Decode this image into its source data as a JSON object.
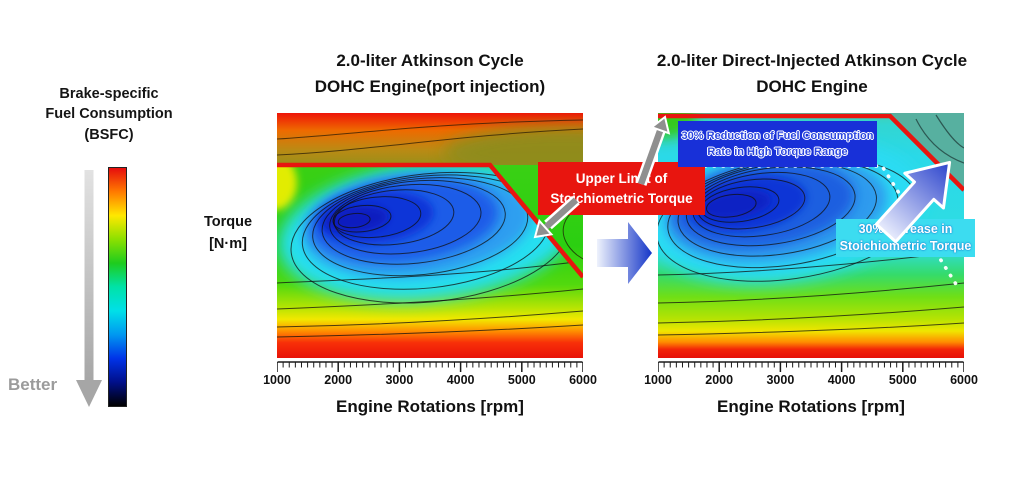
{
  "legend": {
    "title_lines": [
      "Brake-specific",
      "Fuel Consumption",
      "(BSFC)"
    ],
    "better_label": "Better",
    "colorbar_stops": [
      "#e60d0d",
      "#ff7a00",
      "#ffe800",
      "#8ce000",
      "#1ecc1e",
      "#00e2a8",
      "#00e0e8",
      "#0098f0",
      "#0033e8",
      "#000f8a",
      "#000000"
    ]
  },
  "torque_axis": {
    "lines": [
      "Torque",
      "[N·m]"
    ]
  },
  "charts": [
    {
      "title_lines": [
        "2.0-liter Atkinson Cycle",
        "DOHC Engine(port injection)"
      ],
      "x_axis": {
        "label": "Engine Rotations [rpm]",
        "ticks": [
          "1000",
          "2000",
          "3000",
          "4000",
          "5000",
          "6000"
        ]
      }
    },
    {
      "title_lines": [
        "2.0-liter Direct-Injected Atkinson Cycle",
        "DOHC Engine"
      ],
      "x_axis": {
        "label": "Engine Rotations [rpm]",
        "ticks": [
          "1000",
          "2000",
          "3000",
          "4000",
          "5000",
          "6000"
        ]
      }
    }
  ],
  "callouts": {
    "upper_limit": {
      "lines": [
        "Upper Limit of",
        "Stoichiometric Torque"
      ],
      "bg": "#e8150f",
      "fg": "#ffffff"
    },
    "reduction": {
      "lines": [
        "30% Reduction of Fuel Consumption",
        "Rate in High Torque Range"
      ],
      "bg": "#1830d8",
      "fg": "#2b46e0"
    },
    "increase": {
      "lines": [
        "30% Increase in",
        "Stoichiometric Torque"
      ],
      "bg": "#3cdcf0",
      "fg": "#ffffff"
    }
  },
  "chart_data": [
    {
      "type": "contour",
      "title": "2.0-liter Atkinson Cycle DOHC Engine(port injection)",
      "xlabel": "Engine Rotations [rpm]",
      "ylabel": "Torque [N·m]",
      "x_range": [
        1000,
        6000
      ],
      "x_major_ticks": [
        1000,
        2000,
        3000,
        4000,
        5000,
        6000
      ],
      "x_minor_tick_step_rpm": 100,
      "value_label": "Brake-specific Fuel Consumption (BSFC)",
      "colormap": "jet-like: red = high BSFC (worse), dark blue/black = low BSFC (better)",
      "features": [
        {
          "name": "stoichiometric-limit-line",
          "color": "#e8150f",
          "shape": "flat at ~79% of plot height from 1000 to ~4500 rpm, then linear drop to ~33% height at 6000 rpm"
        },
        {
          "name": "best-bsfc-island",
          "desc": "dark-blue minimum-BSFC island centered near 1700-3800 rpm at mid-to-high torque"
        },
        {
          "name": "enriched-region",
          "desc": "red/orange/olive high-BSFC band above the stoichiometric limit line"
        },
        {
          "name": "low-torque-band",
          "desc": "green to yellow to red gradient approaching zero torque at the bottom edge"
        }
      ]
    },
    {
      "type": "contour",
      "title": "2.0-liter Direct-Injected Atkinson Cycle DOHC Engine",
      "xlabel": "Engine Rotations [rpm]",
      "ylabel": "Torque [N·m]",
      "x_range": [
        1000,
        6000
      ],
      "x_major_ticks": [
        1000,
        2000,
        3000,
        4000,
        5000,
        6000
      ],
      "x_minor_tick_step_rpm": 100,
      "value_label": "Brake-specific Fuel Consumption (BSFC)",
      "colormap": "jet-like: red = high BSFC (worse), dark blue/black = low BSFC (better)",
      "features": [
        {
          "name": "stoichiometric-limit-line",
          "color": "#e8150f",
          "shape": "along the top edge (max torque) from 1000 to ~4800 rpm, then linear drop to ~68% height at 6000 rpm"
        },
        {
          "name": "best-bsfc-island",
          "desc": "larger dark-blue minimum-BSFC island spanning ~1500-4300 rpm at high torque"
        },
        {
          "name": "above-limit-region",
          "desc": "small gray-teal region above the limit line in the top-right corner"
        },
        {
          "name": "low-torque-band",
          "desc": "green to yellow to red gradient approaching zero torque at the bottom edge"
        },
        {
          "name": "dotted-guide",
          "desc": "white dotted line marking the former (port-injection) stoichiometric limit for comparison"
        }
      ]
    }
  ]
}
